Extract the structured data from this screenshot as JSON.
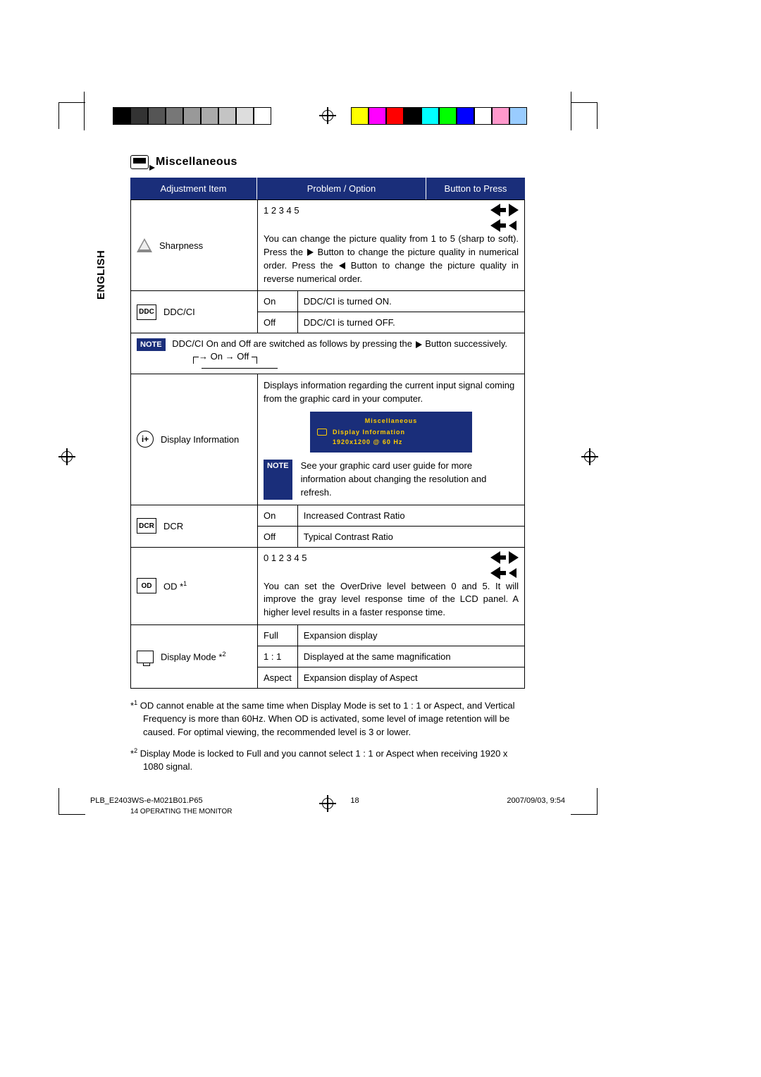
{
  "swatches_gray": [
    "#000000",
    "#333333",
    "#555555",
    "#777777",
    "#999999",
    "#aaaaaa",
    "#c4c4c4",
    "#dddddd",
    "#ffffff"
  ],
  "swatches_color": [
    "#ffff00",
    "#ff00ff",
    "#ff0000",
    "#000000",
    "#00ffff",
    "#00ff00",
    "#0000ff",
    "#ffffff",
    "#ff99cc",
    "#99ccff"
  ],
  "theme": {
    "header_bg": "#1a2e7a",
    "header_fg": "#ffffff",
    "osd_accent": "#ffcc00"
  },
  "side_label": "ENGLISH",
  "section_title": "Miscellaneous",
  "head": {
    "c1": "Adjustment Item",
    "c2": "Problem / Option",
    "c3": "Button to Press"
  },
  "sharpness": {
    "label": "Sharpness",
    "levels": "1 2 3 4 5",
    "desc": "You can change the picture quality from 1 to 5 (sharp to soft). Press the ▶ Button to change the picture quality in numerical order. Press the ◀ Button to change the picture quality in reverse numerical order."
  },
  "ddcci": {
    "icon": "DDC",
    "label": "DDC/CI",
    "on": "On",
    "on_desc": "DDC/CI is turned ON.",
    "off": "Off",
    "off_desc": "DDC/CI is turned OFF.",
    "note": "DDC/CI On and Off are switched as follows by pressing the ▶ Button successively.",
    "diagram_on": "On",
    "diagram_off": "Off"
  },
  "dispinfo": {
    "label": "Display Information",
    "desc": "Displays information regarding the current input signal coming from the graphic card in your computer.",
    "osd_title": "Miscellaneous",
    "osd_row": "Display Information",
    "osd_info": "1920x1200   @  60 Hz",
    "note": "See your graphic card user guide for more information about changing the resolution and refresh."
  },
  "dcr": {
    "icon": "DCR",
    "label": "DCR",
    "on": "On",
    "on_desc": "Increased Contrast Ratio",
    "off": "Off",
    "off_desc": "Typical Contrast Ratio"
  },
  "od": {
    "icon": "OD",
    "label": "OD *1",
    "sup": "1",
    "levels": "0 1 2 3 4 5",
    "desc": "You can set the OverDrive level between 0 and 5. It will improve the gray level response time of the LCD panel. A higher level results in a faster response time."
  },
  "dispmode": {
    "label": "Display Mode *2",
    "sup": "2",
    "full": "Full",
    "full_desc": "Expansion display",
    "one": "1 : 1",
    "one_desc": "Displayed at the same magnification",
    "aspect": "Aspect",
    "aspect_desc": "Expansion display of Aspect"
  },
  "footnotes": {
    "f1": "OD cannot enable at the same time when Display Mode is set to 1 : 1 or Aspect, and Vertical Frequency is more than 60Hz. When OD is activated, some level of image retention will be caused. For optimal viewing, the recommended level is 3 or lower.",
    "f2": "Display Mode is locked to Full and you cannot select 1 : 1 or Aspect when receiving 1920 x 1080 signal."
  },
  "page_footer": "14    OPERATING THE MONITOR",
  "doc_footer": {
    "file": "PLB_E2403WS-e-M021B01.P65",
    "page": "18",
    "date": "2007/09/03, 9:54"
  },
  "note_label": "NOTE"
}
